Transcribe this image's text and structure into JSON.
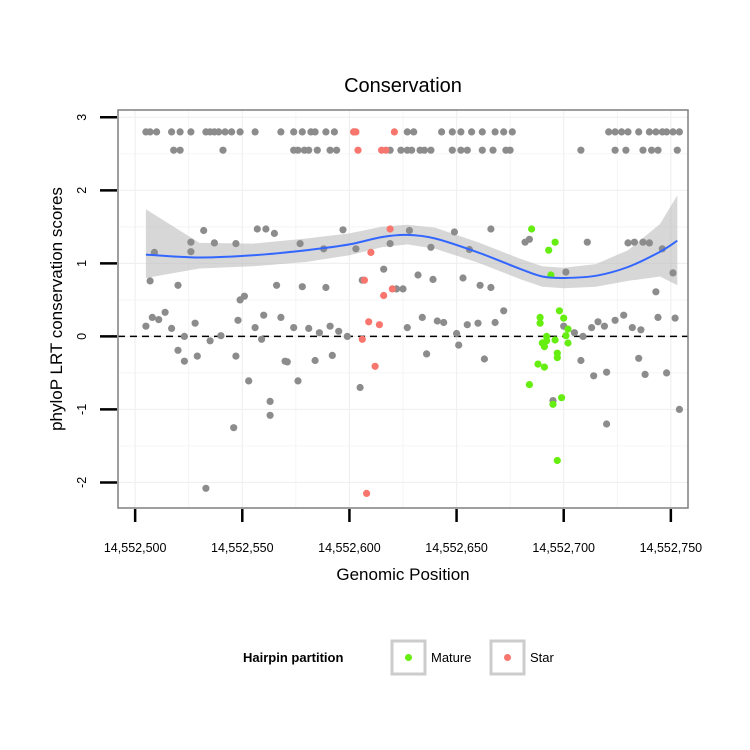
{
  "chart_data": {
    "type": "scatter",
    "title": "Conservation",
    "xlabel": "Genomic Position",
    "ylabel": "phyloP LRT conservation scores",
    "xlim": [
      14552492,
      14552758
    ],
    "ylim": [
      -2.35,
      3.1
    ],
    "x_ticks": [
      14552500,
      14552550,
      14552600,
      14552650,
      14552700,
      14552750
    ],
    "x_tick_labels": [
      "14,552,500",
      "14,552,550",
      "14,552,600",
      "14,552,650",
      "14,552,700",
      "14,552,750"
    ],
    "y_ticks": [
      -2,
      -1,
      0,
      1,
      2,
      3
    ],
    "y_tick_labels": [
      "-2",
      "-1",
      "0",
      "1",
      "2",
      "3"
    ],
    "reference_line": {
      "y": 0,
      "style": "dashed",
      "color": "#000000"
    },
    "grid": true,
    "colors": {
      "other": "#8c8c8c",
      "mature": "#66ee11",
      "star": "#f8766d",
      "smooth": "#3366ff",
      "ribbon": "#bdbdbd",
      "panel_border": "#7f7f7f",
      "grid": "#f0f0f0"
    },
    "legend": {
      "title": "Hairpin partition",
      "position": "bottom",
      "items": [
        {
          "label": "Mature",
          "color": "#66ee11"
        },
        {
          "label": "Star",
          "color": "#f8766d"
        }
      ]
    },
    "smooth_line": {
      "x": [
        14552505,
        14552530,
        14552555,
        14552580,
        14552600,
        14552615,
        14552627,
        14552640,
        14552660,
        14552680,
        14552690,
        14552700,
        14552715,
        14552730,
        14552745,
        14552753
      ],
      "y": [
        1.12,
        1.08,
        1.11,
        1.18,
        1.26,
        1.36,
        1.39,
        1.34,
        1.15,
        0.92,
        0.82,
        0.8,
        0.83,
        0.95,
        1.16,
        1.31
      ],
      "lower": [
        0.8,
        0.93,
        0.96,
        1.02,
        1.11,
        1.22,
        1.26,
        1.2,
        1.01,
        0.78,
        0.68,
        0.66,
        0.68,
        0.76,
        0.82,
        0.7
      ],
      "upper": [
        1.74,
        1.28,
        1.27,
        1.34,
        1.41,
        1.5,
        1.53,
        1.49,
        1.29,
        1.06,
        0.96,
        0.94,
        0.99,
        1.18,
        1.54,
        1.93
      ]
    },
    "series": [
      {
        "name": "Other",
        "x": [
          14552505,
          14552507,
          14552510,
          14552517,
          14552521,
          14552526,
          14552533,
          14552535,
          14552537,
          14552539,
          14552542,
          14552545,
          14552549,
          14552556,
          14552568,
          14552574,
          14552578,
          14552582,
          14552584,
          14552589,
          14552593,
          14552602,
          14552627,
          14552630,
          14552643,
          14552648,
          14552652,
          14552657,
          14552662,
          14552668,
          14552672,
          14552676,
          14552721,
          14552724,
          14552727,
          14552730,
          14552735,
          14552740,
          14552743,
          14552746,
          14552748,
          14552751,
          14552754,
          14552518,
          14552521,
          14552541,
          14552574,
          14552576,
          14552579,
          14552581,
          14552585,
          14552591,
          14552594,
          14552619,
          14552624,
          14552627,
          14552629,
          14552633,
          14552635,
          14552638,
          14552648,
          14552652,
          14552655,
          14552662,
          14552667,
          14552673,
          14552675,
          14552708,
          14552724,
          14552729,
          14552737,
          14552741,
          14552744,
          14552753,
          14552509,
          14552526,
          14552532,
          14552537,
          14552547,
          14552557,
          14552561,
          14552565,
          14552577,
          14552588,
          14552597,
          14552619,
          14552628,
          14552638,
          14552649,
          14552656,
          14552666,
          14552682,
          14552684,
          14552711,
          14552730,
          14552733,
          14552737,
          14552740,
          14552746,
          14552507,
          14552520,
          14552526,
          14552549,
          14552551,
          14552566,
          14552578,
          14552589,
          14552603,
          14552616,
          14552625,
          14552632,
          14552639,
          14552653,
          14552661,
          14552666,
          14552701,
          14552743,
          14552751,
          14552505,
          14552508,
          14552511,
          14552514,
          14552517,
          14552523,
          14552528,
          14552540,
          14552548,
          14552556,
          14552560,
          14552568,
          14552574,
          14552581,
          14552586,
          14552591,
          14552595,
          14552599,
          14552606,
          14552622,
          14552627,
          14552634,
          14552641,
          14552644,
          14552650,
          14552655,
          14552660,
          14552668,
          14552672,
          14552700,
          14552705,
          14552709,
          14552713,
          14552716,
          14552719,
          14552724,
          14552728,
          14552732,
          14552736,
          14552744,
          14552752,
          14552520,
          14552523,
          14552529,
          14552535,
          14552547,
          14552553,
          14552559,
          14552563,
          14552570,
          14552576,
          14552584,
          14552592,
          14552636,
          14552651,
          14552663,
          14552708,
          14552714,
          14552720,
          14552735,
          14552748,
          14552738,
          14552754,
          14552695,
          14552563,
          14552533,
          14552571,
          14552546,
          14552605,
          14552720
        ],
        "y": [
          2.8,
          2.8,
          2.8,
          2.8,
          2.8,
          2.8,
          2.8,
          2.8,
          2.8,
          2.8,
          2.8,
          2.8,
          2.8,
          2.8,
          2.8,
          2.8,
          2.8,
          2.8,
          2.8,
          2.8,
          2.8,
          2.8,
          2.8,
          2.8,
          2.8,
          2.8,
          2.8,
          2.8,
          2.8,
          2.8,
          2.8,
          2.8,
          2.8,
          2.8,
          2.8,
          2.8,
          2.8,
          2.8,
          2.8,
          2.8,
          2.8,
          2.8,
          2.8,
          2.55,
          2.55,
          2.55,
          2.55,
          2.55,
          2.55,
          2.55,
          2.55,
          2.55,
          2.55,
          2.55,
          2.55,
          2.55,
          2.55,
          2.55,
          2.55,
          2.55,
          2.55,
          2.55,
          2.55,
          2.55,
          2.55,
          2.55,
          2.55,
          2.55,
          2.55,
          2.55,
          2.55,
          2.55,
          2.55,
          2.55,
          1.15,
          1.29,
          1.45,
          1.28,
          1.27,
          1.47,
          1.47,
          1.41,
          1.27,
          1.2,
          1.46,
          1.27,
          1.45,
          1.22,
          1.43,
          1.19,
          1.47,
          1.29,
          1.33,
          1.29,
          1.28,
          1.29,
          1.29,
          1.28,
          1.2,
          0.76,
          0.7,
          1.16,
          0.5,
          0.55,
          0.7,
          0.68,
          0.67,
          1.2,
          0.92,
          0.65,
          0.84,
          0.78,
          0.8,
          0.7,
          0.67,
          0.88,
          0.61,
          0.87,
          0.14,
          0.26,
          0.23,
          0.33,
          0.11,
          0.0,
          0.18,
          0.01,
          0.22,
          0.12,
          0.29,
          0.26,
          0.12,
          0.11,
          0.05,
          0.14,
          0.07,
          0.0,
          0.77,
          0.65,
          0.12,
          0.26,
          0.21,
          0.19,
          0.04,
          0.16,
          0.18,
          0.19,
          0.35,
          0.14,
          0.05,
          0.0,
          0.12,
          0.2,
          0.14,
          0.22,
          0.29,
          0.12,
          0.09,
          0.26,
          0.25,
          -0.19,
          -0.34,
          -0.27,
          -0.06,
          -0.27,
          -0.61,
          -0.04,
          -0.89,
          -0.34,
          -0.61,
          -0.33,
          -0.26,
          -0.24,
          -0.12,
          -0.31,
          -0.33,
          -0.54,
          -0.49,
          -0.3,
          -0.5,
          -0.52,
          -1.0,
          -0.88,
          -1.08,
          -2.08,
          -0.35,
          -1.25,
          -0.7,
          -1.2
        ]
      },
      {
        "name": "Mature",
        "x": [
          14552685,
          14552689,
          14552689,
          14552690,
          14552691,
          14552692,
          14552692,
          14552693,
          14552694,
          14552695,
          14552696,
          14552696,
          14552697,
          14552697,
          14552698,
          14552699,
          14552700,
          14552701,
          14552702,
          14552702,
          14552691,
          14552688,
          14552684,
          14552697
        ],
        "y": [
          1.47,
          0.26,
          0.18,
          -0.09,
          -0.14,
          0.0,
          -0.06,
          1.18,
          0.84,
          -0.93,
          1.29,
          -0.05,
          -0.29,
          -1.7,
          0.35,
          -0.84,
          0.25,
          0.01,
          -0.09,
          0.1,
          -0.42,
          -0.38,
          -0.66,
          -0.23
        ]
      },
      {
        "name": "Star",
        "x": [
          14552602,
          14552603,
          14552604,
          14552606,
          14552607,
          14552608,
          14552609,
          14552610,
          14552612,
          14552614,
          14552615,
          14552616,
          14552617,
          14552619,
          14552620,
          14552621
        ],
        "y": [
          2.8,
          2.8,
          2.55,
          -0.04,
          0.77,
          -2.15,
          0.2,
          1.15,
          -0.41,
          0.16,
          2.55,
          0.56,
          2.55,
          1.47,
          0.65,
          2.8
        ]
      }
    ]
  }
}
